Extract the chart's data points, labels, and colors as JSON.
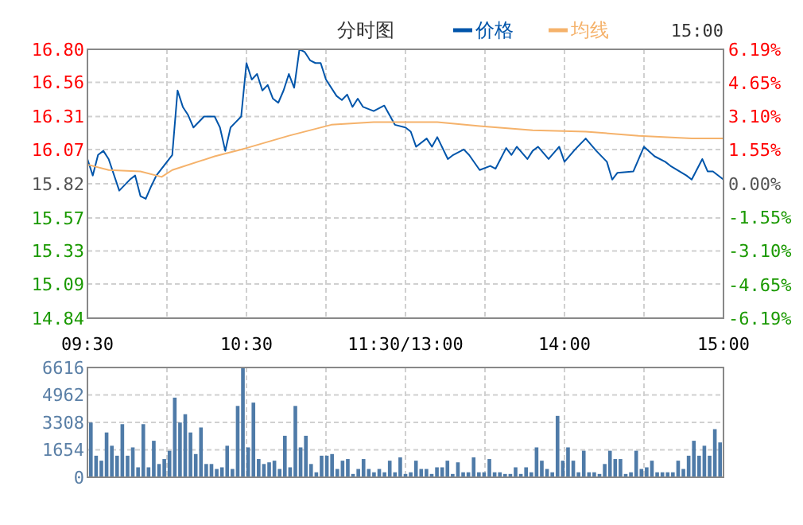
{
  "chart_data": [
    {
      "type": "line",
      "title": "分时图",
      "annotations": [
        "15:00"
      ],
      "legend": "top",
      "grid": true,
      "categories": [
        "09:30",
        null,
        null,
        null,
        null,
        null,
        null,
        null,
        null,
        null,
        null,
        null,
        null,
        null,
        null,
        null,
        null,
        null,
        null,
        null,
        null,
        null,
        null,
        null,
        null,
        null,
        null,
        null,
        null,
        null,
        "10:30",
        null,
        null,
        null,
        null,
        null,
        null,
        null,
        null,
        null,
        null,
        null,
        null,
        null,
        null,
        null,
        null,
        null,
        null,
        null,
        null,
        null,
        null,
        null,
        null,
        null,
        null,
        null,
        null,
        null,
        "11:30/13:00",
        null,
        null,
        null,
        null,
        null,
        null,
        null,
        null,
        null,
        null,
        null,
        null,
        null,
        null,
        null,
        null,
        null,
        null,
        null,
        null,
        null,
        null,
        null,
        null,
        null,
        null,
        null,
        null,
        null,
        "14:00",
        null,
        null,
        null,
        null,
        null,
        null,
        null,
        null,
        null,
        null,
        null,
        null,
        null,
        null,
        null,
        null,
        null,
        null,
        null,
        null,
        null,
        null,
        null,
        null,
        null,
        null,
        null,
        null,
        null,
        "15:00"
      ],
      "ylim": [
        14.84,
        16.8
      ],
      "yticks": [
        14.84,
        15.09,
        15.33,
        15.57,
        15.82,
        16.07,
        16.31,
        16.56,
        {
          "value": 16.8,
          "label": "16.80"
        }
      ],
      "y2lim": [
        -6.19,
        6.19
      ],
      "y2ticks": [
        {
          "value": -6.19,
          "label": "-6.19%"
        },
        {
          "value": -4.65,
          "label": "-4.65%"
        },
        {
          "value": -3.1,
          "label": "-3.10%"
        },
        {
          "value": -1.55,
          "label": "-1.55%"
        },
        {
          "value": 0,
          "label": "0.00%"
        },
        {
          "value": 1.55,
          "label": "1.55%"
        },
        {
          "value": 3.1,
          "label": "3.10%"
        },
        {
          "value": 4.65,
          "label": "4.65%"
        },
        {
          "value": 6.19,
          "label": "6.19%"
        }
      ],
      "series": [
        {
          "name": "价格",
          "color": "#0055aa",
          "values": [
            16.0,
            15.88,
            16.03,
            16.06,
            16.0,
            null,
            15.77,
            null,
            15.85,
            15.88,
            15.73,
            15.71,
            15.8,
            15.88,
            null,
            null,
            16.03,
            16.5,
            16.38,
            16.32,
            16.23,
            null,
            16.31,
            null,
            16.31,
            16.23,
            16.06,
            16.23,
            16.27,
            16.31,
            16.7,
            16.58,
            16.62,
            16.5,
            16.54,
            16.44,
            16.41,
            16.5,
            16.62,
            16.52,
            16.8,
            16.78,
            16.72,
            16.7,
            16.7,
            16.58,
            null,
            16.46,
            16.43,
            16.47,
            16.38,
            16.44,
            16.38,
            null,
            16.35,
            null,
            16.39,
            16.32,
            16.25,
            null,
            16.23,
            16.2,
            16.09,
            null,
            16.15,
            16.09,
            16.16,
            null,
            16.0,
            16.03,
            null,
            16.07,
            16.03,
            null,
            15.92,
            null,
            15.95,
            15.93,
            null,
            16.08,
            16.03,
            16.09,
            null,
            16.0,
            16.06,
            16.09,
            null,
            16.0,
            null,
            16.09,
            15.98,
            null,
            16.07,
            null,
            16.15,
            null,
            16.06,
            null,
            15.98,
            15.85,
            15.9,
            null,
            null,
            15.91,
            16.0,
            16.09,
            null,
            16.02,
            null,
            15.98,
            15.95,
            null,
            null,
            15.88,
            15.85,
            null,
            16.0,
            15.91,
            15.91,
            null,
            15.85
          ]
        },
        {
          "name": "均线",
          "color": "#f5b26b",
          "values": [
            15.96,
            null,
            null,
            null,
            15.92,
            null,
            null,
            null,
            null,
            null,
            15.91,
            null,
            null,
            null,
            15.87,
            null,
            15.92,
            null,
            null,
            null,
            null,
            null,
            null,
            null,
            16.02,
            null,
            null,
            null,
            null,
            null,
            16.08,
            null,
            null,
            null,
            null,
            null,
            null,
            null,
            16.17,
            null,
            null,
            null,
            null,
            null,
            null,
            null,
            16.25,
            null,
            null,
            null,
            null,
            null,
            null,
            null,
            16.27,
            null,
            null,
            null,
            null,
            null,
            16.27,
            null,
            null,
            null,
            null,
            null,
            16.27,
            null,
            null,
            null,
            null,
            null,
            null,
            null,
            16.24,
            null,
            null,
            null,
            null,
            null,
            null,
            null,
            null,
            null,
            16.21,
            null,
            null,
            null,
            null,
            null,
            null,
            null,
            null,
            null,
            16.2,
            null,
            null,
            null,
            null,
            null,
            null,
            null,
            null,
            null,
            16.17,
            null,
            null,
            null,
            null,
            null,
            null,
            null,
            null,
            null,
            16.15,
            null,
            null,
            null,
            null,
            null,
            16.15
          ]
        }
      ]
    },
    {
      "type": "bar",
      "grid": true,
      "tick_labels": "y",
      "color": "#4f7ba8",
      "ylim": [
        0,
        6616
      ],
      "yticks": [
        0,
        1654,
        3308,
        4962,
        6616
      ],
      "categories": [
        null,
        null,
        null,
        null,
        null,
        null,
        null,
        null,
        null,
        null,
        null,
        null,
        null,
        null,
        null,
        null,
        null,
        null,
        null,
        null,
        null,
        null,
        null,
        null,
        null,
        null,
        null,
        null,
        null,
        null,
        null,
        null,
        null,
        null,
        null,
        null,
        null,
        null,
        null,
        null,
        null,
        null,
        null,
        null,
        null,
        null,
        null,
        null,
        null,
        null,
        null,
        null,
        null,
        null,
        null,
        null,
        null,
        null,
        null,
        null,
        null,
        null,
        null,
        null,
        null,
        null,
        null,
        null,
        null,
        null,
        null,
        null,
        null,
        null,
        null,
        null,
        null,
        null,
        null,
        null,
        null,
        null,
        null,
        null,
        null,
        null,
        null,
        null,
        null,
        null,
        null,
        null,
        null,
        null,
        null,
        null,
        null,
        null,
        null,
        null,
        null,
        null,
        null,
        null,
        null,
        null,
        null,
        null,
        null,
        null,
        null,
        null,
        null,
        null,
        null,
        null,
        null,
        null,
        null,
        null,
        null
      ],
      "values": [
        3300,
        1300,
        1000,
        2700,
        1900,
        1300,
        3200,
        1300,
        1800,
        600,
        3200,
        600,
        2200,
        800,
        1100,
        1600,
        4800,
        3300,
        3800,
        2700,
        1400,
        3000,
        800,
        800,
        500,
        600,
        1900,
        500,
        4300,
        6600,
        1800,
        4500,
        1100,
        800,
        900,
        1000,
        500,
        2500,
        600,
        4300,
        1800,
        2500,
        800,
        300,
        1300,
        1300,
        1400,
        500,
        1000,
        1100,
        200,
        500,
        1100,
        500,
        300,
        500,
        300,
        1000,
        300,
        1200,
        200,
        300,
        1000,
        500,
        500,
        200,
        600,
        600,
        1000,
        200,
        900,
        300,
        300,
        1200,
        300,
        300,
        1100,
        300,
        300,
        200,
        200,
        600,
        200,
        600,
        300,
        1800,
        1000,
        500,
        300,
        3700,
        1000,
        1800,
        1000,
        300,
        1600,
        300,
        300,
        200,
        800,
        1600,
        1100,
        1100,
        200,
        300,
        1600,
        500,
        600,
        1000,
        300,
        300,
        300,
        300,
        1000,
        500,
        1300,
        2200,
        1300,
        1900,
        1300,
        2900,
        2100
      ]
    }
  ]
}
